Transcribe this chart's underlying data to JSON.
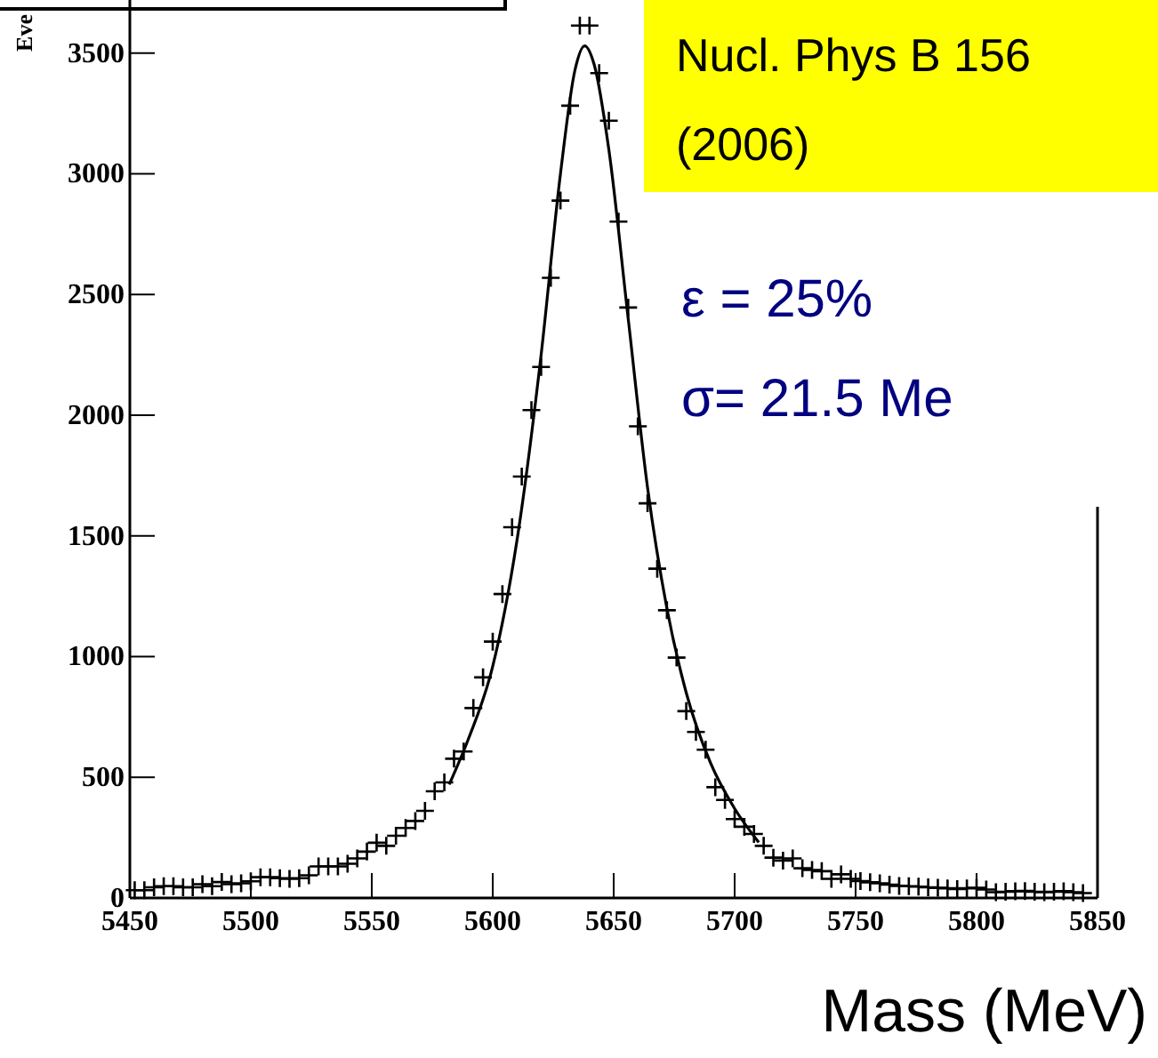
{
  "chart_data": {
    "type": "scatter",
    "xlabel": "Mass (MeV)",
    "ylabel": "Eve",
    "xlim": [
      5450,
      5850
    ],
    "ylim": [
      0,
      3720
    ],
    "xticks": [
      5450,
      5500,
      5550,
      5600,
      5650,
      5700,
      5750,
      5800,
      5850
    ],
    "yticks": [
      0,
      500,
      1000,
      1500,
      2000,
      2500,
      3000,
      3500
    ],
    "marker": "cross",
    "grid": false,
    "annotations": [
      "Nucl. Phys B 156",
      "(2006)",
      "ε = 25%",
      "σ= 21.5 Me"
    ],
    "series": [
      {
        "color": "#000000",
        "x": [
          5452,
          5456,
          5460,
          5464,
          5468,
          5472,
          5476,
          5480,
          5484,
          5488,
          5492,
          5496,
          5500,
          5504,
          5508,
          5512,
          5516,
          5520,
          5524,
          5528,
          5532,
          5536,
          5540,
          5544,
          5548,
          5552,
          5556,
          5560,
          5564,
          5568,
          5572,
          5576,
          5580,
          5584,
          5588,
          5592,
          5596,
          5600,
          5604,
          5608,
          5612,
          5616,
          5620,
          5624,
          5628,
          5632,
          5636,
          5640,
          5644,
          5648,
          5652,
          5656,
          5660,
          5664,
          5668,
          5672,
          5676,
          5680,
          5684,
          5688,
          5692,
          5696,
          5700,
          5704,
          5708,
          5712,
          5716,
          5720,
          5724,
          5728,
          5732,
          5736,
          5740,
          5744,
          5748,
          5752,
          5756,
          5760,
          5764,
          5768,
          5772,
          5776,
          5780,
          5784,
          5788,
          5792,
          5796,
          5800,
          5804,
          5808,
          5812,
          5816,
          5820,
          5824,
          5828,
          5832,
          5836,
          5840,
          5844
        ],
        "values": [
          32,
          32,
          44,
          49,
          49,
          44,
          44,
          57,
          49,
          66,
          57,
          61,
          69,
          86,
          86,
          82,
          79,
          82,
          94,
          131,
          131,
          131,
          142,
          164,
          192,
          229,
          216,
          258,
          290,
          319,
          361,
          442,
          479,
          577,
          607,
          787,
          914,
          1062,
          1259,
          1536,
          1746,
          2021,
          2200,
          2569,
          2889,
          3282,
          3614,
          3614,
          3417,
          3220,
          2802,
          2446,
          1954,
          1635,
          1364,
          1192,
          996,
          774,
          688,
          614,
          459,
          406,
          327,
          295,
          265,
          216,
          167,
          155,
          164,
          123,
          116,
          111,
          79,
          98,
          79,
          70,
          65,
          61,
          55,
          50,
          49,
          47,
          44,
          42,
          40,
          37,
          40,
          42,
          35,
          24,
          26,
          28,
          29,
          26,
          24,
          26,
          28,
          24,
          20
        ]
      },
      {
        "type": "line",
        "color": "#000000",
        "marker": "none",
        "x": [
          5582,
          5590,
          5600,
          5610,
          5620,
          5628,
          5634,
          5638,
          5642,
          5648,
          5656,
          5664,
          5672,
          5680,
          5690,
          5700,
          5710
        ],
        "values": [
          470,
          660,
          960,
          1480,
          2250,
          3000,
          3430,
          3530,
          3450,
          3100,
          2400,
          1700,
          1200,
          850,
          560,
          370,
          230
        ]
      }
    ]
  }
}
